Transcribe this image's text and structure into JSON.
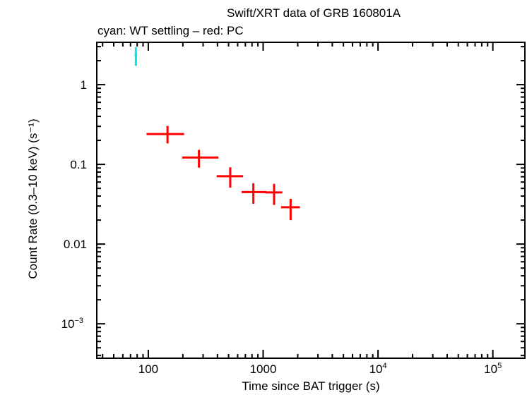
{
  "chart_data": {
    "type": "scatter",
    "title": "Swift/XRT data of GRB 160801A",
    "subtitle": "cyan: WT settling – red: PC",
    "xlabel": "Time since BAT trigger (s)",
    "ylabel": "Count Rate (0.3–10 keV) (s⁻¹)",
    "xscale": "log",
    "yscale": "log",
    "xlim": [
      35.6,
      190000
    ],
    "ylim": [
      0.00037,
      3.4
    ],
    "grid": false,
    "x_ticks": [
      {
        "value": 100,
        "label": "100"
      },
      {
        "value": 1000,
        "label": "1000"
      },
      {
        "value": 10000,
        "label": "10",
        "sup": "4"
      },
      {
        "value": 100000,
        "label": "10",
        "sup": "5"
      }
    ],
    "y_ticks": [
      {
        "value": 1,
        "label": "1"
      },
      {
        "value": 0.1,
        "label": "0.1"
      },
      {
        "value": 0.01,
        "label": "0.01"
      },
      {
        "value": 0.001,
        "label": "10",
        "sup": "−3"
      }
    ],
    "series": [
      {
        "color": "#00e5ee",
        "points": [
          {
            "x": 78,
            "xlo": 76,
            "xhi": 80,
            "y": 2.33,
            "ylo": 1.73,
            "yhi": 2.94
          }
        ]
      },
      {
        "color": "#ff0000",
        "points": [
          {
            "x": 147,
            "xlo": 96.5,
            "xhi": 205,
            "y": 0.24,
            "ylo": 0.183,
            "yhi": 0.304
          },
          {
            "x": 276,
            "xlo": 197,
            "xhi": 408,
            "y": 0.122,
            "ylo": 0.091,
            "yhi": 0.152
          },
          {
            "x": 517,
            "xlo": 394,
            "xhi": 669,
            "y": 0.071,
            "ylo": 0.051,
            "yhi": 0.092
          },
          {
            "x": 822,
            "xlo": 650,
            "xhi": 1066,
            "y": 0.045,
            "ylo": 0.032,
            "yhi": 0.058
          },
          {
            "x": 1245,
            "xlo": 1042,
            "xhi": 1470,
            "y": 0.0445,
            "ylo": 0.031,
            "yhi": 0.057
          },
          {
            "x": 1734,
            "xlo": 1430,
            "xhi": 2090,
            "y": 0.029,
            "ylo": 0.02,
            "yhi": 0.037
          }
        ]
      }
    ]
  }
}
